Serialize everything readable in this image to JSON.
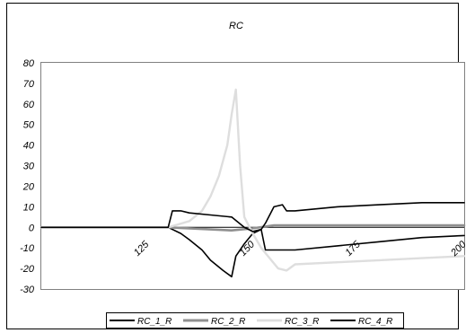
{
  "chart_data": {
    "type": "line",
    "title": "RC",
    "xlabel": "",
    "ylabel": "",
    "xlim": [
      100,
      200
    ],
    "ylim": [
      -30,
      80
    ],
    "y_ticks": [
      80,
      70,
      60,
      50,
      40,
      30,
      20,
      10,
      0,
      -10,
      -20,
      -30
    ],
    "x_ticks": [
      125,
      150,
      175,
      200
    ],
    "grid": false,
    "legend_position": "bottom",
    "series": [
      {
        "name": "RC_1_R",
        "color": "#000000",
        "width": 1.6,
        "x": [
          100,
          125,
          130,
          133,
          135,
          138,
          140,
          143,
          145,
          146,
          147,
          148,
          150,
          152,
          153,
          160,
          170,
          180,
          190,
          200
        ],
        "y": [
          0,
          0,
          0,
          -3,
          -6,
          -11,
          -16,
          -21,
          -24,
          -14,
          -11,
          -8,
          -3,
          -1,
          -11,
          -11,
          -9,
          -7,
          -5,
          -4
        ]
      },
      {
        "name": "RC_2_R",
        "color": "#909090",
        "width": 2.6,
        "x": [
          100,
          125,
          130,
          135,
          140,
          145,
          150,
          155,
          160,
          170,
          180,
          190,
          200
        ],
        "y": [
          0,
          0,
          0,
          -0.5,
          -1,
          -1.5,
          -0.5,
          1,
          1,
          1,
          1,
          1,
          1
        ]
      },
      {
        "name": "RC_3_R",
        "color": "#dedede",
        "width": 2.4,
        "x": [
          100,
          125,
          130,
          135,
          138,
          140,
          142,
          144,
          145,
          146,
          147,
          148,
          150,
          152,
          154,
          156,
          158,
          160,
          170,
          180,
          190,
          200
        ],
        "y": [
          0,
          0,
          0,
          3,
          8,
          15,
          25,
          40,
          55,
          67,
          30,
          5,
          -3,
          -10,
          -15,
          -20,
          -21,
          -18,
          -17,
          -16,
          -15,
          -14
        ]
      },
      {
        "name": "RC_4_R",
        "color": "#000000",
        "width": 1.6,
        "x": [
          100,
          125,
          130,
          131,
          133,
          135,
          140,
          145,
          148,
          150,
          152,
          153,
          155,
          157,
          158,
          160,
          165,
          170,
          180,
          190,
          200
        ],
        "y": [
          0,
          0,
          0,
          8,
          8,
          7,
          6,
          5,
          0,
          -2,
          -1,
          2,
          10,
          11,
          8,
          8,
          9,
          10,
          11,
          12,
          12
        ]
      }
    ]
  }
}
